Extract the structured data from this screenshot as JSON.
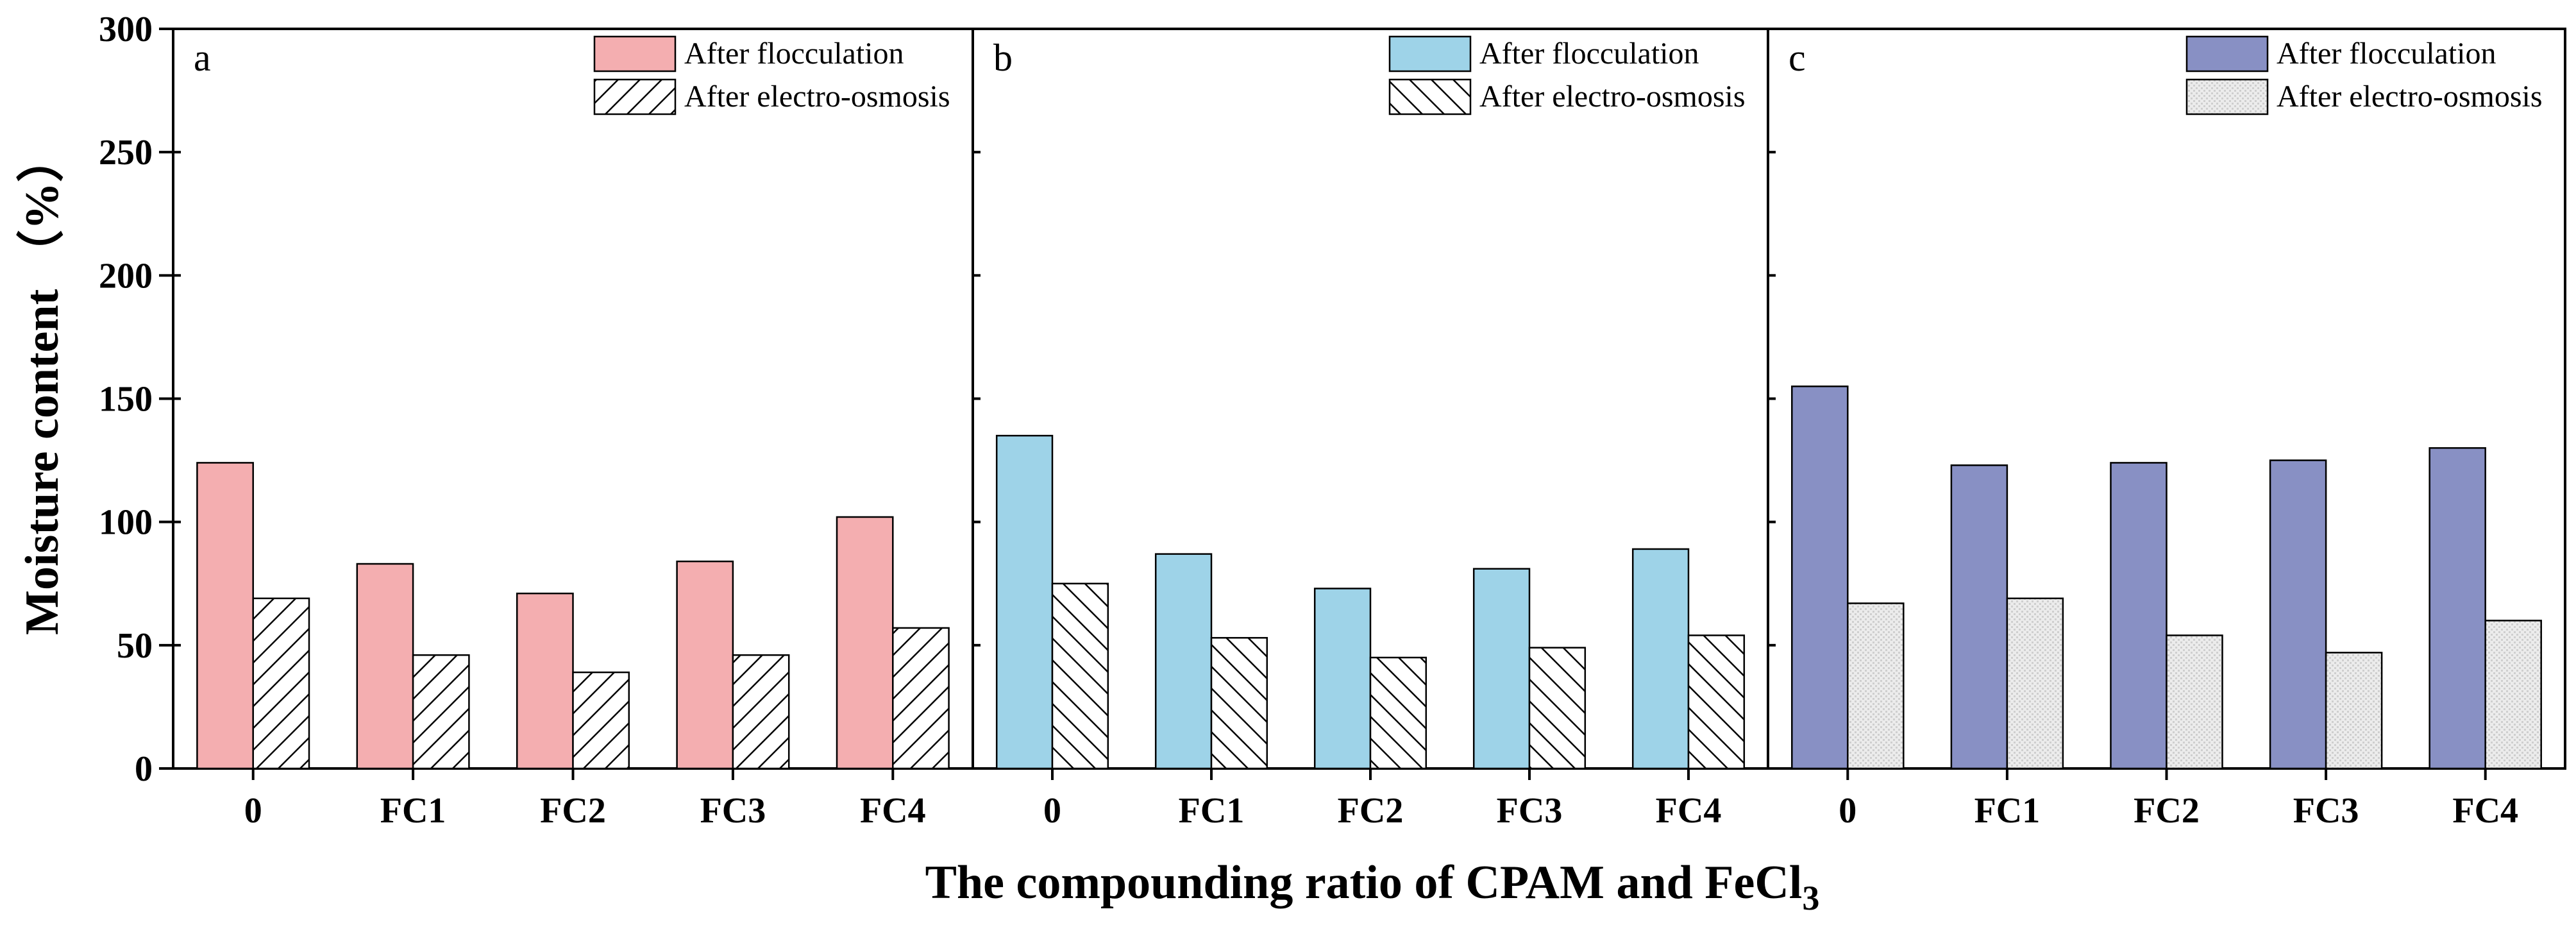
{
  "y_axis_title": "Moisture content （%）",
  "x_axis_title": {
    "main": "The compounding ratio of CPAM and FeCl",
    "subscript": "3"
  },
  "chart_data": [
    {
      "type": "bar",
      "panel": "a",
      "categories": [
        "0",
        "FC1",
        "FC2",
        "FC3",
        "FC4"
      ],
      "series": [
        {
          "name": "After flocculation",
          "values": [
            124,
            83,
            71,
            84,
            102
          ],
          "color": "#f4aeb0",
          "pattern": "solid"
        },
        {
          "name": "After electro-osmosis",
          "values": [
            69,
            46,
            39,
            46,
            57
          ],
          "color": "#ffffff",
          "pattern": "diagonal-up"
        }
      ],
      "ylim": [
        0,
        300
      ],
      "yticks": [
        0,
        50,
        100,
        150,
        200,
        250,
        300
      ],
      "ylabel": "Moisture content （%）",
      "legend": "top-right"
    },
    {
      "type": "bar",
      "panel": "b",
      "categories": [
        "0",
        "FC1",
        "FC2",
        "FC3",
        "FC4"
      ],
      "series": [
        {
          "name": "After flocculation",
          "values": [
            135,
            87,
            73,
            81,
            89
          ],
          "color": "#9ed3e8",
          "pattern": "solid"
        },
        {
          "name": "After electro-osmosis",
          "values": [
            75,
            53,
            45,
            49,
            54
          ],
          "color": "#ffffff",
          "pattern": "diagonal-down"
        }
      ],
      "ylim": [
        0,
        300
      ],
      "legend": "top-right"
    },
    {
      "type": "bar",
      "panel": "c",
      "categories": [
        "0",
        "FC1",
        "FC2",
        "FC3",
        "FC4"
      ],
      "series": [
        {
          "name": "After flocculation",
          "values": [
            155,
            123,
            124,
            125,
            130
          ],
          "color": "#8890c4",
          "pattern": "solid"
        },
        {
          "name": "After electro-osmosis",
          "values": [
            67,
            69,
            54,
            47,
            60
          ],
          "color": "#e6e6e6",
          "pattern": "dotted"
        }
      ],
      "ylim": [
        0,
        300
      ],
      "legend": "top-right"
    }
  ]
}
